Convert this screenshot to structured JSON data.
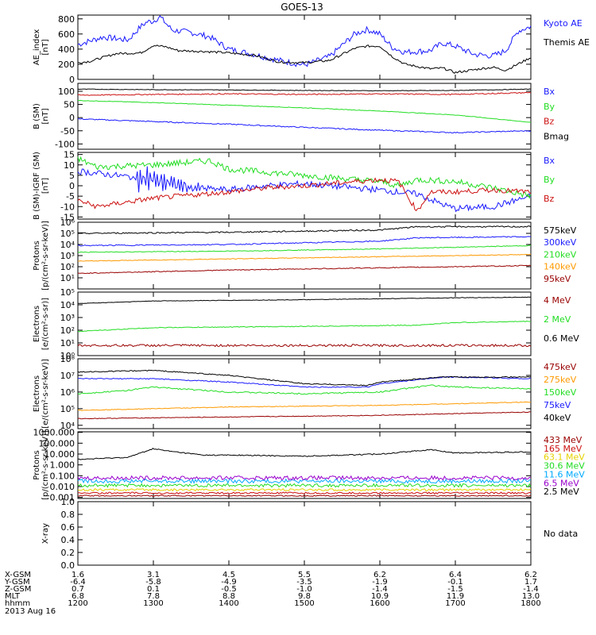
{
  "title": "GOES-13",
  "colors": {
    "black": "#000000",
    "blue": "#1a1aff",
    "red": "#cc1111",
    "green": "#22dd22",
    "orange": "#ff9900",
    "cyan": "#00aaff",
    "maroon": "#990000",
    "purple": "#9900cc",
    "yellow": "#e6d200"
  },
  "chart_data": [
    {
      "type": "line",
      "ylabel": [
        "AE_index",
        "[nT]"
      ],
      "ylim": [
        0,
        850
      ],
      "scale": "linear",
      "yticks": [
        {
          "v": 0,
          "t": "0"
        },
        {
          "v": 200,
          "t": "200"
        },
        {
          "v": 400,
          "t": "400"
        },
        {
          "v": 600,
          "t": "600"
        },
        {
          "v": 800,
          "t": "800"
        }
      ],
      "series": [
        {
          "name": "Kyoto AE",
          "color": "#1a1aff",
          "noise": 40,
          "x": [
            1200,
            1220,
            1240,
            1250,
            1255,
            1300,
            1305,
            1315,
            1330,
            1345,
            1400,
            1420,
            1440,
            1450,
            1500,
            1520,
            1540,
            1550,
            1600,
            1610,
            1620,
            1640,
            1650,
            1700,
            1715,
            1730,
            1740,
            1750,
            1800
          ],
          "y": [
            460,
            560,
            520,
            700,
            760,
            770,
            830,
            650,
            620,
            560,
            400,
            330,
            250,
            220,
            190,
            300,
            600,
            660,
            600,
            420,
            360,
            380,
            480,
            440,
            330,
            310,
            380,
            640,
            700
          ]
        },
        {
          "name": "Themis AE",
          "color": "#000000",
          "noise": 15,
          "x": [
            1200,
            1210,
            1230,
            1250,
            1300,
            1310,
            1320,
            1340,
            1400,
            1420,
            1440,
            1500,
            1520,
            1540,
            1550,
            1600,
            1610,
            1620,
            1640,
            1650,
            1700,
            1720,
            1730,
            1740,
            1800
          ],
          "y": [
            220,
            240,
            340,
            350,
            450,
            430,
            380,
            370,
            350,
            320,
            230,
            220,
            250,
            410,
            440,
            440,
            300,
            200,
            140,
            150,
            90,
            140,
            160,
            120,
            290
          ]
        }
      ]
    },
    {
      "type": "line",
      "ylabel": [
        "B (SM)",
        "[nT]"
      ],
      "ylim": [
        -120,
        130
      ],
      "scale": "linear",
      "yticks": [
        {
          "v": -100,
          "t": "-100"
        },
        {
          "v": -50,
          "t": "-50"
        },
        {
          "v": 0,
          "t": "0"
        },
        {
          "v": 50,
          "t": "50"
        },
        {
          "v": 100,
          "t": "100"
        }
      ],
      "series": [
        {
          "name": "Bx",
          "color": "#1a1aff",
          "noise": 2,
          "x": [
            1200,
            1300,
            1400,
            1500,
            1600,
            1700,
            1800
          ],
          "y": [
            -5,
            -15,
            -25,
            -37,
            -48,
            -57,
            -50
          ]
        },
        {
          "name": "By",
          "color": "#22dd22",
          "noise": 1,
          "x": [
            1200,
            1300,
            1400,
            1500,
            1600,
            1700,
            1800
          ],
          "y": [
            65,
            57,
            47,
            37,
            25,
            10,
            -18
          ]
        },
        {
          "name": "Bz",
          "color": "#cc1111",
          "noise": 2,
          "x": [
            1200,
            1300,
            1400,
            1500,
            1600,
            1700,
            1800
          ],
          "y": [
            85,
            88,
            90,
            88,
            90,
            88,
            95
          ]
        },
        {
          "name": "Bmag",
          "color": "#000000",
          "noise": 1,
          "x": [
            1200,
            1300,
            1400,
            1500,
            1600,
            1700,
            1800
          ],
          "y": [
            108,
            106,
            105,
            103,
            102,
            103,
            108
          ]
        }
      ]
    },
    {
      "type": "line",
      "ylabel": [
        "B (SM)-IGRF (SM)",
        "[nT]"
      ],
      "ylim": [
        -16,
        16
      ],
      "scale": "linear",
      "yticks": [
        {
          "v": -15,
          "t": "-15"
        },
        {
          "v": -10,
          "t": "-10"
        },
        {
          "v": -5,
          "t": "-5"
        },
        {
          "v": 0,
          "t": "0"
        },
        {
          "v": 5,
          "t": "5"
        },
        {
          "v": 10,
          "t": "10"
        },
        {
          "v": 15,
          "t": "15"
        }
      ],
      "series": [
        {
          "name": "Bx",
          "color": "#1a1aff",
          "noise": 1.5,
          "wave": [
            1245,
            1350,
            6
          ],
          "x": [
            1200,
            1230,
            1300,
            1330,
            1400,
            1430,
            1500,
            1600,
            1630,
            1650,
            1700,
            1730,
            1800
          ],
          "y": [
            7,
            5,
            3,
            -1,
            -2,
            0,
            1,
            -2,
            -4,
            -9,
            -11,
            -10,
            -5
          ]
        },
        {
          "name": "By",
          "color": "#22dd22",
          "noise": 1.5,
          "x": [
            1200,
            1215,
            1300,
            1345,
            1400,
            1500,
            1600,
            1615,
            1630,
            1700,
            1730,
            1800
          ],
          "y": [
            13,
            9,
            10,
            12,
            8,
            5,
            2,
            0,
            3,
            2,
            -1,
            -5
          ]
        },
        {
          "name": "Bz",
          "color": "#cc1111",
          "noise": 1.2,
          "x": [
            1200,
            1215,
            1300,
            1400,
            1430,
            1500,
            1600,
            1615,
            1625,
            1630,
            1640,
            1700,
            1730,
            1800
          ],
          "y": [
            -7,
            -10,
            -6,
            -3,
            -1,
            0,
            3,
            2,
            -8,
            -12,
            -3,
            -3,
            -2,
            -3
          ]
        }
      ]
    },
    {
      "type": "line",
      "ylabel": [
        "Protons",
        "[p/(cm²-s-sr-keV)]"
      ],
      "ylim": [
        0,
        6
      ],
      "scale": "log",
      "yticks": [
        {
          "v": 1,
          "t": "10¹"
        },
        {
          "v": 2,
          "t": "10²"
        },
        {
          "v": 3,
          "t": "10³"
        },
        {
          "v": 4,
          "t": "10⁴"
        },
        {
          "v": 5,
          "t": "10⁵"
        },
        {
          "v": 6,
          "t": "10⁶"
        }
      ],
      "series": [
        {
          "name": "575keV",
          "color": "#000000",
          "noise": 0.06,
          "x": [
            1200,
            1400,
            1600,
            1630,
            1800
          ],
          "y": [
            5.0,
            5.1,
            5.3,
            5.6,
            5.6
          ]
        },
        {
          "name": "300keV",
          "color": "#1a1aff",
          "noise": 0.05,
          "x": [
            1200,
            1400,
            1600,
            1630,
            1800
          ],
          "y": [
            3.9,
            4.0,
            4.3,
            4.6,
            4.7
          ]
        },
        {
          "name": "210keV",
          "color": "#22dd22",
          "noise": 0.03,
          "x": [
            1200,
            1400,
            1600,
            1800
          ],
          "y": [
            3.3,
            3.4,
            3.6,
            3.9
          ]
        },
        {
          "name": "140keV",
          "color": "#ff9900",
          "noise": 0.03,
          "x": [
            1200,
            1400,
            1600,
            1800
          ],
          "y": [
            2.5,
            2.7,
            2.9,
            3.1
          ]
        },
        {
          "name": "95keV",
          "color": "#990000",
          "noise": 0.04,
          "x": [
            1200,
            1400,
            1600,
            1800
          ],
          "y": [
            1.4,
            1.7,
            1.9,
            2.1
          ]
        }
      ]
    },
    {
      "type": "line",
      "ylabel": [
        "Electrons",
        "[e/(cm²-s-sr)]"
      ],
      "ylim": [
        0,
        5
      ],
      "scale": "log",
      "yticks": [
        {
          "v": 0,
          "t": "10⁰"
        },
        {
          "v": 1,
          "t": "10¹"
        },
        {
          "v": 2,
          "t": "10²"
        },
        {
          "v": 3,
          "t": "10³"
        },
        {
          "v": 4,
          "t": "10⁴"
        },
        {
          "v": 5,
          "t": "10⁵"
        }
      ],
      "series": [
        {
          "name": "4 MeV",
          "color": "#990000",
          "noise": 0.09,
          "x": [
            1200,
            1500,
            1800
          ],
          "y": [
            0.8,
            0.8,
            0.8
          ]
        },
        {
          "name": "2 MeV",
          "color": "#22dd22",
          "noise": 0.03,
          "x": [
            1200,
            1300,
            1500,
            1630,
            1700,
            1800
          ],
          "y": [
            1.9,
            2.2,
            2.3,
            2.4,
            2.6,
            2.7
          ]
        },
        {
          "name": "0.6 MeV",
          "color": "#000000",
          "noise": 0.02,
          "x": [
            1200,
            1300,
            1500,
            1700,
            1800
          ],
          "y": [
            4.1,
            4.3,
            4.4,
            4.55,
            4.6
          ]
        }
      ]
    },
    {
      "type": "line",
      "ylabel": [
        "Electrons",
        "[e/(cm²-s-sr-keV)]"
      ],
      "ylim": [
        3.8,
        8
      ],
      "scale": "log",
      "yticks": [
        {
          "v": 4,
          "t": "10⁴"
        },
        {
          "v": 5,
          "t": "10⁵"
        },
        {
          "v": 6,
          "t": "10⁶"
        },
        {
          "v": 7,
          "t": "10⁷"
        },
        {
          "v": 8,
          "t": "10⁸"
        }
      ],
      "series": [
        {
          "name": "475keV",
          "color": "#990000",
          "noise": 0.02,
          "x": [
            1200,
            1400,
            1600,
            1800
          ],
          "y": [
            4.4,
            4.5,
            4.6,
            4.8
          ]
        },
        {
          "name": "275keV",
          "color": "#ff9900",
          "noise": 0.02,
          "x": [
            1200,
            1400,
            1600,
            1800
          ],
          "y": [
            4.9,
            5.1,
            5.2,
            5.4
          ]
        },
        {
          "name": "150keV",
          "color": "#22dd22",
          "noise": 0.04,
          "x": [
            1200,
            1240,
            1300,
            1400,
            1500,
            1600,
            1640,
            1700,
            1800
          ],
          "y": [
            5.9,
            6.1,
            6.3,
            6.0,
            5.9,
            6.0,
            6.4,
            6.3,
            6.2
          ]
        },
        {
          "name": "75keV",
          "color": "#1a1aff",
          "noise": 0.03,
          "x": [
            1200,
            1300,
            1400,
            1500,
            1550,
            1600,
            1650,
            1700,
            1800
          ],
          "y": [
            6.8,
            6.8,
            6.6,
            6.3,
            6.3,
            6.5,
            6.9,
            6.9,
            6.8
          ]
        },
        {
          "name": "40keV",
          "color": "#000000",
          "noise": 0.03,
          "x": [
            1200,
            1300,
            1400,
            1500,
            1550,
            1600,
            1650,
            1700,
            1800
          ],
          "y": [
            7.2,
            7.3,
            7.0,
            6.5,
            6.4,
            6.6,
            6.9,
            6.9,
            6.9
          ]
        }
      ]
    },
    {
      "type": "line",
      "ylabel": [
        "Protons",
        "[p/(cm²-s-sr-keV)]"
      ],
      "ylim": [
        -3.1,
        3.05
      ],
      "scale": "log",
      "yticks": [
        {
          "v": -3,
          "t": "0.001"
        },
        {
          "v": -2,
          "t": "0.010"
        },
        {
          "v": -1,
          "t": "0.100"
        },
        {
          "v": 0,
          "t": "1.000"
        },
        {
          "v": 1,
          "t": "10.000"
        },
        {
          "v": 2,
          "t": "100.000"
        },
        {
          "v": 3,
          "t": "1000.000"
        }
      ],
      "series": [
        {
          "name": "433 MeV",
          "color": "#990000",
          "noise": 0.05,
          "x": [
            1200,
            1800
          ],
          "y": [
            -2.85,
            -2.85
          ]
        },
        {
          "name": "165 MeV",
          "color": "#cc1111",
          "noise": 0.08,
          "x": [
            1200,
            1800
          ],
          "y": [
            -2.6,
            -2.6
          ]
        },
        {
          "name": "63.1 MeV",
          "color": "#e6d200",
          "noise": 0.1,
          "x": [
            1200,
            1800
          ],
          "y": [
            -2.3,
            -2.3
          ]
        },
        {
          "name": "30.6 MeV",
          "color": "#22dd22",
          "noise": 0.15,
          "x": [
            1200,
            1800
          ],
          "y": [
            -1.9,
            -1.9
          ]
        },
        {
          "name": "11.6 MeV",
          "color": "#00aaff",
          "noise": 0.18,
          "x": [
            1200,
            1800
          ],
          "y": [
            -1.5,
            -1.5
          ]
        },
        {
          "name": "6.5 MeV",
          "color": "#9900cc",
          "noise": 0.18,
          "x": [
            1200,
            1800
          ],
          "y": [
            -1.2,
            -1.2
          ]
        },
        {
          "name": "2.5 MeV",
          "color": "#000000",
          "noise": 0.05,
          "x": [
            1200,
            1240,
            1300,
            1310,
            1340,
            1400,
            1500,
            1600,
            1640,
            1700,
            1800
          ],
          "y": [
            0.5,
            0.7,
            1.5,
            1.3,
            0.9,
            0.9,
            0.8,
            1.0,
            1.4,
            1.1,
            1.2
          ]
        }
      ]
    },
    {
      "type": "line",
      "ylabel": [
        "X-ray"
      ],
      "ylim": [
        0,
        1
      ],
      "scale": "linear",
      "yticks": [
        {
          "v": 0,
          "t": "0.0"
        },
        {
          "v": 0.2,
          "t": "0.2"
        },
        {
          "v": 0.4,
          "t": "0.4"
        },
        {
          "v": 0.6,
          "t": "0.6"
        },
        {
          "v": 0.8,
          "t": "0.8"
        },
        {
          "v": 1.0,
          "t": "1.0"
        }
      ],
      "series": [],
      "note": "No data"
    }
  ],
  "footer": {
    "row_labels": [
      "X-GSM",
      "Y-GSM",
      "Z-GSM",
      "MLT",
      "hhmm"
    ],
    "date": "2013 Aug 16",
    "columns": [
      [
        "1.6",
        "-6.4",
        "0.7",
        "6.8",
        "1200"
      ],
      [
        "3.1",
        "-5.8",
        "0.1",
        "7.8",
        "1300"
      ],
      [
        "4.5",
        "-4.9",
        "-0.5",
        "8.8",
        "1400"
      ],
      [
        "5.5",
        "-3.5",
        "-1.0",
        "9.8",
        "1500"
      ],
      [
        "6.2",
        "-1.9",
        "-1.4",
        "10.9",
        "1600"
      ],
      [
        "6.4",
        "-0.1",
        "-1.5",
        "11.9",
        "1700"
      ],
      [
        "6.2",
        "1.7",
        "-1.4",
        "13.0",
        "1800"
      ]
    ]
  }
}
